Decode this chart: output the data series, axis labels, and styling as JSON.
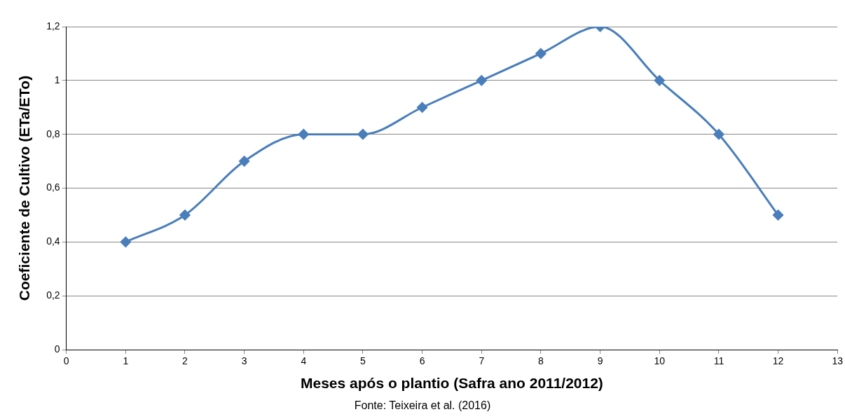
{
  "chart_data": {
    "type": "line",
    "xlabel": "Meses após o plantio (Safra ano 2011/2012)",
    "ylabel": "Coeficiente de Cultivo (ETa/ETo)",
    "x": [
      1,
      2,
      3,
      4,
      5,
      6,
      7,
      8,
      9,
      10,
      11,
      12
    ],
    "series": [
      {
        "color": "#4a7ebb",
        "values": [
          0.4,
          0.5,
          0.7,
          0.8,
          0.8,
          0.9,
          1.0,
          1.1,
          1.2,
          1.0,
          0.8,
          0.5
        ]
      }
    ],
    "xlim": [
      0,
      13
    ],
    "xticks": [
      0,
      1,
      2,
      3,
      4,
      5,
      6,
      7,
      8,
      9,
      10,
      11,
      12,
      13
    ],
    "ylim": [
      0,
      1.2
    ],
    "yticks": [
      0,
      {
        "value": 0.2,
        "label": "0,2"
      },
      {
        "value": 0.4,
        "label": "0,4"
      },
      {
        "value": 0.6,
        "label": "0,6"
      },
      {
        "value": 0.8,
        "label": "0,8"
      },
      1,
      {
        "value": 1.2,
        "label": "1,2"
      }
    ],
    "grid": "y",
    "legend": false,
    "marker": "diamond",
    "line_style": "solid",
    "annotations": [
      "Fonte: Teixeira et al. (2016)"
    ]
  }
}
